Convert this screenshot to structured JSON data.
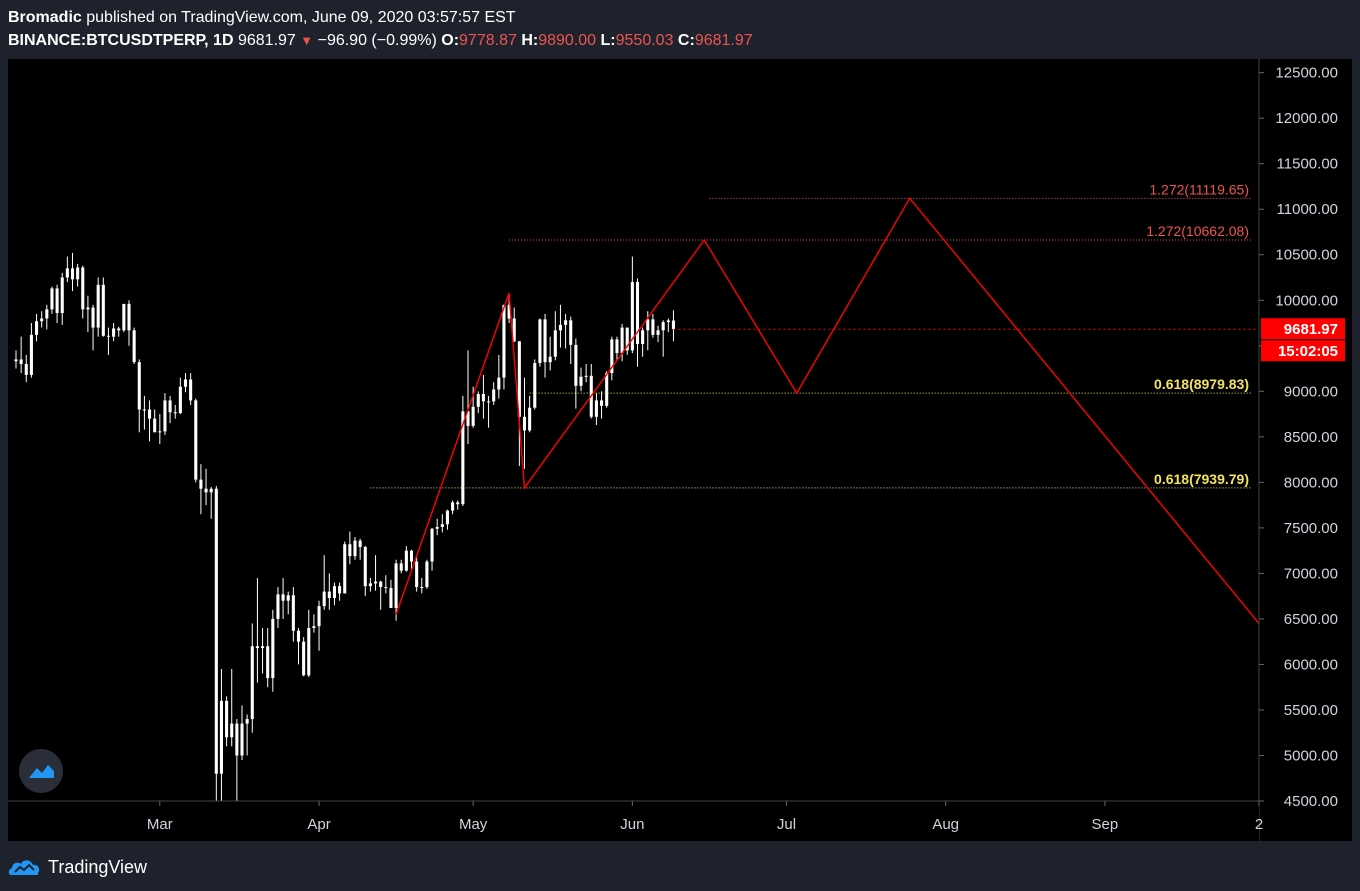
{
  "header": {
    "author": "Bromadic",
    "published_text": " published on TradingView.com, June 09, 2020 03:57:57 EST",
    "symbol": "BINANCE:BTCUSDTPERP, 1D",
    "last": "9681.97",
    "change": "−96.90 (−0.99%)",
    "o_label": "O:",
    "o_value": "9778.87",
    "h_label": "H:",
    "h_value": "9890.00",
    "l_label": "L:",
    "l_value": "9550.03",
    "c_label": "C:",
    "c_value": "9681.97"
  },
  "footer": {
    "brand": "TradingView"
  },
  "colors": {
    "background": "#000000",
    "frame": "#1e222d",
    "candle": "#ffffff",
    "pattern_line": "#ff0000",
    "fib_upper": "#ef5350",
    "fib_lower": "#f5e35b",
    "price_badge": "#ff0000",
    "axis_text": "#d1d4dc"
  },
  "icons": {
    "logo": "tradingview-cloud-icon",
    "floating": "tradingview-logo-icon",
    "change_arrow": "down-triangle-icon"
  },
  "chart_data": {
    "type": "candlestick",
    "title": "",
    "xlabel": "",
    "ylabel": "",
    "ylim": [
      4500,
      12650
    ],
    "y_ticks": [
      "12500.00",
      "12000.00",
      "11500.00",
      "11000.00",
      "10500.00",
      "10000.00",
      "9500.00",
      "9000.00",
      "8500.00",
      "8000.00",
      "7500.00",
      "7000.00",
      "6500.00",
      "6000.00",
      "5500.00",
      "5000.00",
      "4500.00"
    ],
    "x_ticks": [
      "Mar",
      "Apr",
      "May",
      "Jun",
      "Jul",
      "Aug",
      "Sep",
      "2"
    ],
    "x_tick_dates": [
      "2020-03-01",
      "2020-04-01",
      "2020-05-01",
      "2020-06-01",
      "2020-07-01",
      "2020-08-01",
      "2020-09-01",
      "2020-10-01"
    ],
    "xlim": [
      "2020-02-02",
      "2020-10-01"
    ],
    "grid": false,
    "candles": [
      {
        "date": "2020-02-02",
        "o": 9330,
        "h": 9450,
        "l": 9250,
        "c": 9350
      },
      {
        "date": "2020-02-03",
        "o": 9350,
        "h": 9600,
        "l": 9200,
        "c": 9300
      },
      {
        "date": "2020-02-04",
        "o": 9300,
        "h": 9400,
        "l": 9100,
        "c": 9180
      },
      {
        "date": "2020-02-05",
        "o": 9180,
        "h": 9750,
        "l": 9150,
        "c": 9620
      },
      {
        "date": "2020-02-06",
        "o": 9620,
        "h": 9850,
        "l": 9550,
        "c": 9770
      },
      {
        "date": "2020-02-07",
        "o": 9770,
        "h": 9880,
        "l": 9700,
        "c": 9800
      },
      {
        "date": "2020-02-08",
        "o": 9800,
        "h": 9950,
        "l": 9680,
        "c": 9900
      },
      {
        "date": "2020-02-09",
        "o": 9900,
        "h": 10150,
        "l": 9850,
        "c": 10130
      },
      {
        "date": "2020-02-10",
        "o": 10130,
        "h": 10170,
        "l": 9750,
        "c": 9860
      },
      {
        "date": "2020-02-11",
        "o": 9860,
        "h": 10300,
        "l": 9730,
        "c": 10250
      },
      {
        "date": "2020-02-12",
        "o": 10250,
        "h": 10480,
        "l": 10200,
        "c": 10350
      },
      {
        "date": "2020-02-13",
        "o": 10350,
        "h": 10520,
        "l": 10100,
        "c": 10230
      },
      {
        "date": "2020-02-14",
        "o": 10230,
        "h": 10400,
        "l": 10150,
        "c": 10360
      },
      {
        "date": "2020-02-15",
        "o": 10360,
        "h": 10380,
        "l": 9800,
        "c": 9900
      },
      {
        "date": "2020-02-16",
        "o": 9900,
        "h": 10050,
        "l": 9650,
        "c": 9920
      },
      {
        "date": "2020-02-17",
        "o": 9920,
        "h": 9950,
        "l": 9450,
        "c": 9700
      },
      {
        "date": "2020-02-18",
        "o": 9700,
        "h": 10250,
        "l": 9600,
        "c": 10170
      },
      {
        "date": "2020-02-19",
        "o": 10170,
        "h": 10250,
        "l": 9600,
        "c": 9610
      },
      {
        "date": "2020-02-20",
        "o": 9610,
        "h": 9700,
        "l": 9400,
        "c": 9600
      },
      {
        "date": "2020-02-21",
        "o": 9600,
        "h": 9750,
        "l": 9550,
        "c": 9690
      },
      {
        "date": "2020-02-22",
        "o": 9690,
        "h": 9710,
        "l": 9600,
        "c": 9670
      },
      {
        "date": "2020-02-23",
        "o": 9670,
        "h": 9950,
        "l": 9650,
        "c": 9960
      },
      {
        "date": "2020-02-24",
        "o": 9960,
        "h": 10000,
        "l": 9500,
        "c": 9670
      },
      {
        "date": "2020-02-25",
        "o": 9670,
        "h": 9700,
        "l": 9300,
        "c": 9320
      },
      {
        "date": "2020-02-26",
        "o": 9320,
        "h": 9350,
        "l": 8550,
        "c": 8800
      },
      {
        "date": "2020-02-27",
        "o": 8800,
        "h": 8950,
        "l": 8580,
        "c": 8800
      },
      {
        "date": "2020-02-28",
        "o": 8800,
        "h": 8900,
        "l": 8450,
        "c": 8700
      },
      {
        "date": "2020-02-29",
        "o": 8700,
        "h": 8800,
        "l": 8550,
        "c": 8550
      },
      {
        "date": "2020-03-01",
        "o": 8550,
        "h": 8750,
        "l": 8420,
        "c": 8560
      },
      {
        "date": "2020-03-02",
        "o": 8560,
        "h": 8980,
        "l": 8520,
        "c": 8900
      },
      {
        "date": "2020-03-03",
        "o": 8900,
        "h": 8950,
        "l": 8650,
        "c": 8770
      },
      {
        "date": "2020-03-04",
        "o": 8770,
        "h": 8850,
        "l": 8700,
        "c": 8760
      },
      {
        "date": "2020-03-05",
        "o": 8760,
        "h": 9150,
        "l": 8750,
        "c": 9050
      },
      {
        "date": "2020-03-06",
        "o": 9050,
        "h": 9200,
        "l": 8990,
        "c": 9130
      },
      {
        "date": "2020-03-07",
        "o": 9130,
        "h": 9200,
        "l": 8850,
        "c": 8900
      },
      {
        "date": "2020-03-08",
        "o": 8900,
        "h": 8920,
        "l": 8000,
        "c": 8030
      },
      {
        "date": "2020-03-09",
        "o": 8030,
        "h": 8200,
        "l": 7650,
        "c": 7930
      },
      {
        "date": "2020-03-10",
        "o": 7930,
        "h": 8150,
        "l": 7750,
        "c": 7890
      },
      {
        "date": "2020-03-11",
        "o": 7890,
        "h": 7950,
        "l": 7600,
        "c": 7930
      },
      {
        "date": "2020-03-12",
        "o": 7930,
        "h": 7960,
        "l": 4400,
        "c": 4800
      },
      {
        "date": "2020-03-13",
        "o": 4800,
        "h": 5950,
        "l": 3800,
        "c": 5600
      },
      {
        "date": "2020-03-14",
        "o": 5600,
        "h": 5650,
        "l": 5100,
        "c": 5200
      },
      {
        "date": "2020-03-15",
        "o": 5200,
        "h": 5950,
        "l": 5100,
        "c": 5350
      },
      {
        "date": "2020-03-16",
        "o": 5350,
        "h": 5400,
        "l": 4450,
        "c": 5000
      },
      {
        "date": "2020-03-17",
        "o": 5000,
        "h": 5550,
        "l": 4950,
        "c": 5350
      },
      {
        "date": "2020-03-18",
        "o": 5350,
        "h": 5450,
        "l": 5000,
        "c": 5400
      },
      {
        "date": "2020-03-19",
        "o": 5400,
        "h": 6450,
        "l": 5250,
        "c": 6200
      },
      {
        "date": "2020-03-20",
        "o": 6200,
        "h": 6950,
        "l": 5800,
        "c": 6180
      },
      {
        "date": "2020-03-21",
        "o": 6180,
        "h": 6400,
        "l": 5900,
        "c": 6200
      },
      {
        "date": "2020-03-22",
        "o": 6200,
        "h": 6400,
        "l": 5750,
        "c": 5850
      },
      {
        "date": "2020-03-23",
        "o": 5850,
        "h": 6600,
        "l": 5700,
        "c": 6500
      },
      {
        "date": "2020-03-24",
        "o": 6500,
        "h": 6850,
        "l": 6400,
        "c": 6770
      },
      {
        "date": "2020-03-25",
        "o": 6770,
        "h": 6950,
        "l": 6500,
        "c": 6700
      },
      {
        "date": "2020-03-26",
        "o": 6700,
        "h": 6800,
        "l": 6550,
        "c": 6760
      },
      {
        "date": "2020-03-27",
        "o": 6760,
        "h": 6850,
        "l": 6250,
        "c": 6370
      },
      {
        "date": "2020-03-28",
        "o": 6370,
        "h": 6400,
        "l": 6000,
        "c": 6250
      },
      {
        "date": "2020-03-29",
        "o": 6250,
        "h": 6300,
        "l": 5870,
        "c": 5880
      },
      {
        "date": "2020-03-30",
        "o": 5880,
        "h": 6600,
        "l": 5860,
        "c": 6400
      },
      {
        "date": "2020-03-31",
        "o": 6400,
        "h": 6550,
        "l": 6350,
        "c": 6420
      },
      {
        "date": "2020-04-01",
        "o": 6420,
        "h": 6700,
        "l": 6150,
        "c": 6640
      },
      {
        "date": "2020-04-02",
        "o": 6640,
        "h": 7200,
        "l": 6600,
        "c": 6800
      },
      {
        "date": "2020-04-03",
        "o": 6800,
        "h": 7000,
        "l": 6600,
        "c": 6730
      },
      {
        "date": "2020-04-04",
        "o": 6730,
        "h": 6900,
        "l": 6650,
        "c": 6860
      },
      {
        "date": "2020-04-05",
        "o": 6860,
        "h": 6900,
        "l": 6700,
        "c": 6780
      },
      {
        "date": "2020-04-06",
        "o": 6780,
        "h": 7350,
        "l": 6780,
        "c": 7320
      },
      {
        "date": "2020-04-07",
        "o": 7320,
        "h": 7460,
        "l": 7100,
        "c": 7190
      },
      {
        "date": "2020-04-08",
        "o": 7190,
        "h": 7400,
        "l": 7150,
        "c": 7360
      },
      {
        "date": "2020-04-09",
        "o": 7360,
        "h": 7380,
        "l": 7150,
        "c": 7290
      },
      {
        "date": "2020-04-10",
        "o": 7290,
        "h": 7300,
        "l": 6750,
        "c": 6860
      },
      {
        "date": "2020-04-11",
        "o": 6860,
        "h": 6950,
        "l": 6800,
        "c": 6890
      },
      {
        "date": "2020-04-12",
        "o": 6890,
        "h": 7200,
        "l": 6810,
        "c": 6910
      },
      {
        "date": "2020-04-13",
        "o": 6910,
        "h": 6920,
        "l": 6600,
        "c": 6850
      },
      {
        "date": "2020-04-14",
        "o": 6850,
        "h": 6980,
        "l": 6780,
        "c": 6840
      },
      {
        "date": "2020-04-15",
        "o": 6840,
        "h": 6930,
        "l": 6620,
        "c": 6620
      },
      {
        "date": "2020-04-16",
        "o": 6620,
        "h": 7150,
        "l": 6480,
        "c": 7110
      },
      {
        "date": "2020-04-17",
        "o": 7110,
        "h": 7150,
        "l": 7000,
        "c": 7030
      },
      {
        "date": "2020-04-18",
        "o": 7030,
        "h": 7300,
        "l": 7020,
        "c": 7250
      },
      {
        "date": "2020-04-19",
        "o": 7250,
        "h": 7260,
        "l": 7050,
        "c": 7130
      },
      {
        "date": "2020-04-20",
        "o": 7130,
        "h": 7200,
        "l": 6800,
        "c": 6850
      },
      {
        "date": "2020-04-21",
        "o": 6850,
        "h": 6950,
        "l": 6780,
        "c": 6850
      },
      {
        "date": "2020-04-22",
        "o": 6850,
        "h": 7150,
        "l": 6830,
        "c": 7130
      },
      {
        "date": "2020-04-23",
        "o": 7130,
        "h": 7500,
        "l": 7030,
        "c": 7490
      },
      {
        "date": "2020-04-24",
        "o": 7490,
        "h": 7600,
        "l": 7420,
        "c": 7510
      },
      {
        "date": "2020-04-25",
        "o": 7510,
        "h": 7650,
        "l": 7450,
        "c": 7540
      },
      {
        "date": "2020-04-26",
        "o": 7540,
        "h": 7700,
        "l": 7480,
        "c": 7690
      },
      {
        "date": "2020-04-27",
        "o": 7690,
        "h": 7800,
        "l": 7650,
        "c": 7780
      },
      {
        "date": "2020-04-28",
        "o": 7780,
        "h": 7800,
        "l": 7700,
        "c": 7760
      },
      {
        "date": "2020-04-29",
        "o": 7760,
        "h": 8950,
        "l": 7740,
        "c": 8780
      },
      {
        "date": "2020-04-30",
        "o": 8780,
        "h": 9450,
        "l": 8420,
        "c": 8620
      },
      {
        "date": "2020-05-01",
        "o": 8620,
        "h": 9050,
        "l": 8600,
        "c": 8830
      },
      {
        "date": "2020-05-02",
        "o": 8830,
        "h": 9000,
        "l": 8760,
        "c": 8970
      },
      {
        "date": "2020-05-03",
        "o": 8970,
        "h": 9180,
        "l": 8700,
        "c": 8890
      },
      {
        "date": "2020-05-04",
        "o": 8890,
        "h": 8950,
        "l": 8600,
        "c": 8890
      },
      {
        "date": "2020-05-05",
        "o": 8890,
        "h": 9100,
        "l": 8850,
        "c": 9020
      },
      {
        "date": "2020-05-06",
        "o": 9020,
        "h": 9400,
        "l": 8920,
        "c": 9150
      },
      {
        "date": "2020-05-07",
        "o": 9150,
        "h": 9950,
        "l": 9020,
        "c": 9950
      },
      {
        "date": "2020-05-08",
        "o": 9950,
        "h": 10050,
        "l": 9750,
        "c": 9800
      },
      {
        "date": "2020-05-09",
        "o": 9800,
        "h": 9920,
        "l": 9540,
        "c": 9550
      },
      {
        "date": "2020-05-10",
        "o": 9550,
        "h": 9550,
        "l": 8180,
        "c": 8720
      },
      {
        "date": "2020-05-11",
        "o": 8720,
        "h": 9150,
        "l": 8150,
        "c": 8570
      },
      {
        "date": "2020-05-12",
        "o": 8570,
        "h": 8950,
        "l": 8550,
        "c": 8820
      },
      {
        "date": "2020-05-13",
        "o": 8820,
        "h": 9350,
        "l": 8800,
        "c": 9310
      },
      {
        "date": "2020-05-14",
        "o": 9310,
        "h": 9800,
        "l": 9270,
        "c": 9790
      },
      {
        "date": "2020-05-15",
        "o": 9790,
        "h": 9850,
        "l": 9150,
        "c": 9320
      },
      {
        "date": "2020-05-16",
        "o": 9320,
        "h": 9600,
        "l": 9230,
        "c": 9380
      },
      {
        "date": "2020-05-17",
        "o": 9380,
        "h": 9880,
        "l": 9340,
        "c": 9670
      },
      {
        "date": "2020-05-18",
        "o": 9670,
        "h": 9950,
        "l": 9480,
        "c": 9730
      },
      {
        "date": "2020-05-19",
        "o": 9730,
        "h": 9850,
        "l": 9470,
        "c": 9780
      },
      {
        "date": "2020-05-20",
        "o": 9780,
        "h": 9820,
        "l": 9300,
        "c": 9510
      },
      {
        "date": "2020-05-21",
        "o": 9510,
        "h": 9580,
        "l": 8810,
        "c": 9060
      },
      {
        "date": "2020-05-22",
        "o": 9060,
        "h": 9260,
        "l": 9000,
        "c": 9160
      },
      {
        "date": "2020-05-23",
        "o": 9160,
        "h": 9300,
        "l": 9100,
        "c": 9170
      },
      {
        "date": "2020-05-24",
        "o": 9170,
        "h": 9300,
        "l": 8700,
        "c": 8720
      },
      {
        "date": "2020-05-25",
        "o": 8720,
        "h": 8980,
        "l": 8630,
        "c": 8900
      },
      {
        "date": "2020-05-26",
        "o": 8900,
        "h": 9000,
        "l": 8700,
        "c": 8840
      },
      {
        "date": "2020-05-27",
        "o": 8840,
        "h": 9220,
        "l": 8820,
        "c": 9200
      },
      {
        "date": "2020-05-28",
        "o": 9200,
        "h": 9600,
        "l": 9120,
        "c": 9570
      },
      {
        "date": "2020-05-29",
        "o": 9570,
        "h": 9600,
        "l": 9340,
        "c": 9420
      },
      {
        "date": "2020-05-30",
        "o": 9420,
        "h": 9740,
        "l": 9330,
        "c": 9700
      },
      {
        "date": "2020-05-31",
        "o": 9700,
        "h": 9700,
        "l": 9400,
        "c": 9450
      },
      {
        "date": "2020-06-01",
        "o": 9450,
        "h": 10480,
        "l": 9420,
        "c": 10200
      },
      {
        "date": "2020-06-02",
        "o": 10200,
        "h": 10240,
        "l": 9270,
        "c": 9520
      },
      {
        "date": "2020-06-03",
        "o": 9520,
        "h": 9700,
        "l": 9380,
        "c": 9670
      },
      {
        "date": "2020-06-04",
        "o": 9670,
        "h": 9880,
        "l": 9450,
        "c": 9790
      },
      {
        "date": "2020-06-05",
        "o": 9790,
        "h": 9850,
        "l": 9590,
        "c": 9620
      },
      {
        "date": "2020-06-06",
        "o": 9620,
        "h": 9720,
        "l": 9540,
        "c": 9670
      },
      {
        "date": "2020-06-07",
        "o": 9670,
        "h": 9780,
        "l": 9380,
        "c": 9760
      },
      {
        "date": "2020-06-08",
        "o": 9760,
        "h": 9800,
        "l": 9650,
        "c": 9778
      },
      {
        "date": "2020-06-09",
        "o": 9778,
        "h": 9890,
        "l": 9550,
        "c": 9681.97
      }
    ],
    "pattern_lines": [
      {
        "points": [
          {
            "date": "2020-04-16",
            "price": 6550
          },
          {
            "date": "2020-05-08",
            "price": 10080
          },
          {
            "date": "2020-05-11",
            "price": 7940
          },
          {
            "date": "2020-06-15",
            "price": 10662
          },
          {
            "date": "2020-07-03",
            "price": 8980
          },
          {
            "date": "2020-07-25",
            "price": 11120
          },
          {
            "date": "2020-10-01",
            "price": 6450
          }
        ]
      }
    ],
    "fib_levels": [
      {
        "label": "1.272(11119.65)",
        "price": 11119.65,
        "from": "2020-06-16"
      },
      {
        "label": "1.272(10662.08)",
        "price": 10662.08,
        "from": "2020-05-08"
      },
      {
        "label": "0.618(8979.83)",
        "price": 8979.83,
        "from": "2020-05-12"
      },
      {
        "label": "0.618(7939.79)",
        "price": 7939.79,
        "from": "2020-04-11"
      }
    ],
    "last_price": {
      "value": "9681.97",
      "countdown": "15:02:05"
    }
  }
}
